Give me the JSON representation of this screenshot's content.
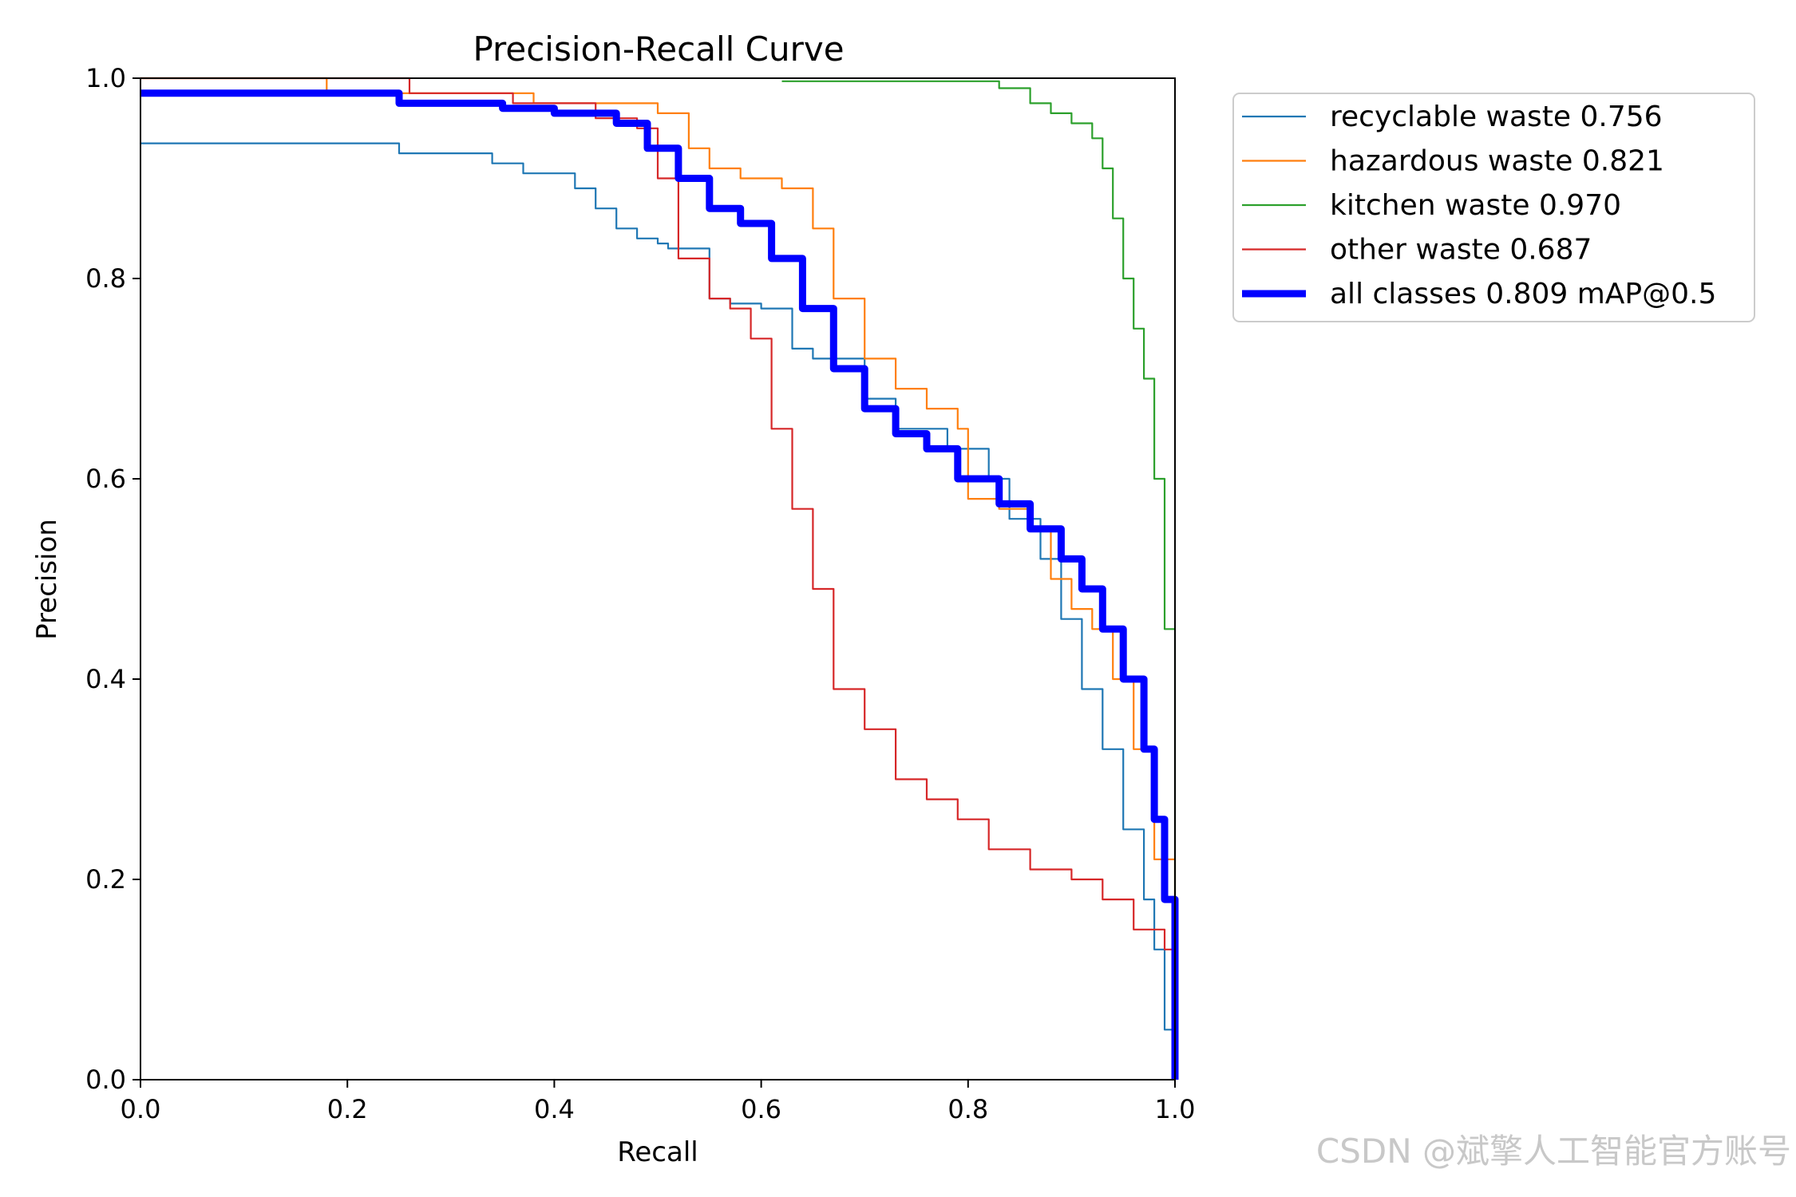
{
  "chart_data": {
    "type": "line",
    "title": "Precision-Recall Curve",
    "xlabel": "Recall",
    "ylabel": "Precision",
    "xlim": [
      0,
      1
    ],
    "ylim": [
      0,
      1
    ],
    "xticks": [
      "0.0",
      "0.2",
      "0.4",
      "0.6",
      "0.8",
      "1.0"
    ],
    "yticks": [
      "0.0",
      "0.2",
      "0.4",
      "0.6",
      "0.8",
      "1.0"
    ],
    "legend_position": "outside-top-right",
    "series": [
      {
        "name": "recyclable waste",
        "label": "recyclable waste 0.756",
        "color": "#1f77b4",
        "width": "thin",
        "x": [
          0,
          0.23,
          0.25,
          0.34,
          0.37,
          0.42,
          0.44,
          0.46,
          0.48,
          0.5,
          0.51,
          0.55,
          0.57,
          0.6,
          0.63,
          0.65,
          0.7,
          0.73,
          0.78,
          0.82,
          0.84,
          0.87,
          0.89,
          0.91,
          0.93,
          0.95,
          0.97,
          0.98,
          0.99,
          1.0
        ],
        "y": [
          0.935,
          0.935,
          0.925,
          0.915,
          0.905,
          0.89,
          0.87,
          0.85,
          0.84,
          0.835,
          0.83,
          0.78,
          0.775,
          0.77,
          0.73,
          0.72,
          0.68,
          0.65,
          0.63,
          0.6,
          0.56,
          0.52,
          0.46,
          0.39,
          0.33,
          0.25,
          0.18,
          0.13,
          0.05,
          0.0
        ]
      },
      {
        "name": "hazardous waste",
        "label": "hazardous waste 0.821",
        "color": "#ff7f0e",
        "width": "thin",
        "x": [
          0,
          0.18,
          0.18,
          0.38,
          0.5,
          0.53,
          0.55,
          0.58,
          0.62,
          0.65,
          0.67,
          0.7,
          0.73,
          0.76,
          0.79,
          0.8,
          0.83,
          0.86,
          0.88,
          0.9,
          0.92,
          0.94,
          0.96,
          0.98,
          1.0
        ],
        "y": [
          1.0,
          1.0,
          0.985,
          0.975,
          0.965,
          0.93,
          0.91,
          0.9,
          0.89,
          0.85,
          0.78,
          0.72,
          0.69,
          0.67,
          0.65,
          0.58,
          0.57,
          0.55,
          0.5,
          0.47,
          0.45,
          0.4,
          0.33,
          0.22,
          0.0
        ]
      },
      {
        "name": "kitchen waste",
        "label": "kitchen waste 0.970",
        "color": "#2ca02c",
        "width": "thin",
        "x": [
          0.62,
          0.8,
          0.83,
          0.86,
          0.88,
          0.9,
          0.92,
          0.93,
          0.94,
          0.95,
          0.96,
          0.97,
          0.98,
          0.99,
          1.0
        ],
        "y": [
          0.997,
          0.997,
          0.99,
          0.975,
          0.965,
          0.955,
          0.94,
          0.91,
          0.86,
          0.8,
          0.75,
          0.7,
          0.6,
          0.45,
          0.0
        ]
      },
      {
        "name": "other waste",
        "label": "other waste 0.687",
        "color": "#d62728",
        "width": "thin",
        "x": [
          0,
          0.25,
          0.26,
          0.36,
          0.44,
          0.48,
          0.5,
          0.52,
          0.55,
          0.57,
          0.59,
          0.61,
          0.63,
          0.65,
          0.67,
          0.7,
          0.73,
          0.76,
          0.79,
          0.82,
          0.86,
          0.9,
          0.93,
          0.96,
          0.99,
          1.0
        ],
        "y": [
          1.0,
          1.0,
          0.985,
          0.975,
          0.96,
          0.95,
          0.9,
          0.82,
          0.78,
          0.77,
          0.74,
          0.65,
          0.57,
          0.49,
          0.39,
          0.35,
          0.3,
          0.28,
          0.26,
          0.23,
          0.21,
          0.2,
          0.18,
          0.15,
          0.13,
          0.0
        ]
      },
      {
        "name": "all classes",
        "label": "all classes 0.809 mAP@0.5",
        "color": "#0000ff",
        "width": "thick",
        "x": [
          0,
          0.18,
          0.25,
          0.35,
          0.4,
          0.46,
          0.49,
          0.52,
          0.55,
          0.58,
          0.61,
          0.64,
          0.67,
          0.7,
          0.73,
          0.76,
          0.79,
          0.83,
          0.86,
          0.89,
          0.91,
          0.93,
          0.95,
          0.97,
          0.98,
          0.99,
          1.0
        ],
        "y": [
          0.985,
          0.985,
          0.975,
          0.97,
          0.965,
          0.955,
          0.93,
          0.9,
          0.87,
          0.855,
          0.82,
          0.77,
          0.71,
          0.67,
          0.645,
          0.63,
          0.6,
          0.575,
          0.55,
          0.52,
          0.49,
          0.45,
          0.4,
          0.33,
          0.26,
          0.18,
          0.0
        ]
      }
    ]
  },
  "watermark": "CSDN @斌擎人工智能官方账号"
}
